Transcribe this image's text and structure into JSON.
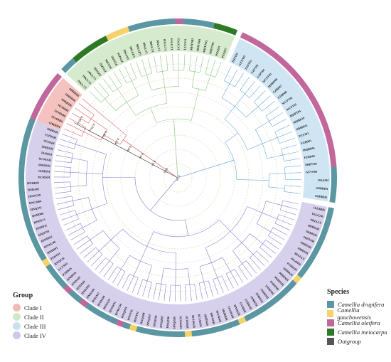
{
  "legend_group": {
    "title": "Group",
    "items": [
      {
        "label": "Clade I",
        "color": "#f2b9b5"
      },
      {
        "label": "Clade II",
        "color": "#cfe8c6"
      },
      {
        "label": "Clade III",
        "color": "#c7e1f2"
      },
      {
        "label": "Clade IV",
        "color": "#cfc8ea"
      }
    ]
  },
  "legend_species": {
    "title": "Species",
    "items": [
      {
        "label": "Camellia drupifera",
        "color": "#5b97a3"
      },
      {
        "label": "Camellia gauchowensis",
        "color": "#f5d36a"
      },
      {
        "label": "Camellia oleifera",
        "color": "#c2679b"
      },
      {
        "label": "Camellia meiocarpa",
        "color": "#2c7a26"
      },
      {
        "label": "Outgroup",
        "color": "#555555"
      }
    ]
  },
  "scale_ticks": [
    "0.40",
    "0.35",
    "0.30",
    "0.25",
    "0.20",
    "0.15",
    "0.10",
    "0.05",
    "0.00"
  ],
  "clades": [
    {
      "id": "clade1",
      "line": "#e15b5b",
      "fill": "#f2b9b5",
      "leaves": [
        "MHDB21",
        "MHDC03",
        "MHDC02",
        "MHDC01",
        "MHDB04",
        "MHDB03",
        "MHDB09"
      ],
      "species": [
        "o",
        "o",
        "o",
        "o",
        "o",
        "o",
        "o"
      ]
    },
    {
      "id": "clade2",
      "line": "#8fc77f",
      "fill": "#cfe8c6",
      "leaves": [
        "LCYN02",
        "LCYN04",
        "LCYN07",
        "PZSZ03",
        "PZSZ02",
        "PZSZ06",
        "PZSZ05",
        "PZSZ04",
        "SXYN01",
        "GZYN03",
        "GZYN04",
        "LCYN08",
        "LCYN06",
        "LCYN05",
        "LCYN10",
        "LCYN14",
        "LCYN13",
        "LCYN11",
        "MHYN02",
        "MHYN04",
        "MHYN03",
        "MHYN01",
        "PZSZ01",
        "PZSZ07"
      ],
      "species": [
        "d",
        "d",
        "m",
        "m",
        "m",
        "m",
        "m",
        "g",
        "g",
        "g",
        "d",
        "d",
        "d",
        "d",
        "d",
        "d",
        "o",
        "d",
        "d",
        "d",
        "d",
        "m",
        "m",
        "m"
      ]
    },
    {
      "id": "clade3",
      "line": "#6aa9dd",
      "fill": "#c7e1f2",
      "leaves": [
        "HJPT01",
        "GZYN05",
        "FZPT05",
        "FZPT06",
        "FZPT04",
        "WCPT03",
        "MHBD08",
        "FZBD07",
        "FZBD08",
        "WCPT02",
        "WCPT01",
        "MHPT04",
        "MHBD10",
        "MHBD11",
        "PZTJ03",
        "FZBD01",
        "MHBD05",
        "FZBD02",
        "MHPT03",
        "GZYN06",
        "HJPT02",
        "MHBD07",
        "MHBD03"
      ],
      "species": [
        "o",
        "o",
        "o",
        "o",
        "o",
        "o",
        "o",
        "o",
        "o",
        "o",
        "o",
        "o",
        "o",
        "o",
        "o",
        "o",
        "o",
        "o",
        "o",
        "d",
        "d",
        "d",
        "d"
      ]
    },
    {
      "id": "clade4",
      "line": "#8a7fd0",
      "fill": "#cfc8ea",
      "leaves": [
        "MHPT01",
        "WCPT01",
        "XYYN04",
        "HNHD09",
        "HNHD03",
        "HNQZ04",
        "HNHD04",
        "HNHD01",
        "XYYN08",
        "MHPT02",
        "HNHD14",
        "HNHD05",
        "HNHD06",
        "HNHD08",
        "HNHD10",
        "HNHD15",
        "HNHD12",
        "PZHK02",
        "PZHK01",
        "HNHD13",
        "HNDA11",
        "HNDA02",
        "HNWC02",
        "MHBD02",
        "HNWC05",
        "HNDA08",
        "HNQZ05",
        "HNWC10",
        "HNWC06",
        "HNWC07",
        "HNWC03",
        "HNQZ09",
        "HNQZ06",
        "HNQZ02",
        "HNQZ01",
        "HNQZ07",
        "HNQZ08",
        "HNSY01",
        "HNSY02",
        "HNQZ03",
        "HNWC04",
        "HNSW01",
        "HNDA10",
        "HNDA09",
        "HNDA07",
        "HNDA06",
        "HNDA05",
        "HNDA04",
        "HNDA03",
        "HNHK01",
        "PZHK05",
        "LCYN01",
        "HNQZ10",
        "PZRY01",
        "HNDD01",
        "HNWC08",
        "HNHK02",
        "HNDC01",
        "HNDD11",
        "HNDD13",
        "HNDD06",
        "HNQZ11",
        "HNCM04",
        "HNWC09",
        "HNDA01",
        "HNHK03",
        "HNDC04",
        "PZHK03",
        "HNDD09",
        "HNWC01",
        "PZRY02",
        "HNDD05",
        "HNSC05",
        "HNQZ12",
        "HNDD02"
      ],
      "species": [
        "d",
        "d",
        "d",
        "d",
        "d",
        "d",
        "d",
        "d",
        "d",
        "d",
        "d",
        "g",
        "d",
        "d",
        "d",
        "d",
        "d",
        "d",
        "d",
        "d",
        "d",
        "g",
        "d",
        "d",
        "d",
        "d",
        "d",
        "d",
        "d",
        "g",
        "d",
        "d",
        "d",
        "d",
        "d",
        "d",
        "d",
        "g",
        "d",
        "o",
        "d",
        "d",
        "d",
        "d",
        "d",
        "o",
        "d",
        "d",
        "o",
        "d",
        "d",
        "d",
        "d",
        "g",
        "d",
        "d",
        "d",
        "d",
        "d",
        "d",
        "d",
        "d",
        "d",
        "d",
        "d",
        "d",
        "d",
        "d",
        "d",
        "d",
        "d",
        "d",
        "d",
        "d",
        "d"
      ]
    }
  ]
}
